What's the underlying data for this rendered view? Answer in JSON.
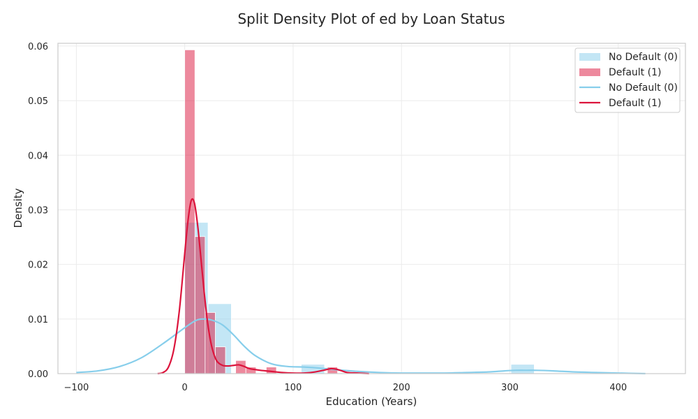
{
  "chart_data": {
    "type": "histogram+kde",
    "title": "Split Density Plot of ed by Loan Status",
    "xlabel": "Education (Years)",
    "ylabel": "Density",
    "xlim": [
      -117,
      462
    ],
    "ylim": [
      0,
      0.0605
    ],
    "xticks": [
      -100,
      0,
      100,
      200,
      300,
      400
    ],
    "yticks": [
      0.0,
      0.01,
      0.02,
      0.03,
      0.04,
      0.05,
      0.06
    ],
    "xtick_labels": [
      "−100",
      "0",
      "100",
      "200",
      "300",
      "400"
    ],
    "ytick_labels": [
      "0.00",
      "0.01",
      "0.02",
      "0.03",
      "0.04",
      "0.05",
      "0.06"
    ],
    "grid": true,
    "legend_position": "top-right",
    "legend": [
      {
        "label": "No Default (0)",
        "kind": "patch",
        "color": "#87CEEB"
      },
      {
        "label": "Default (1)",
        "kind": "patch",
        "color": "#DC143C"
      },
      {
        "label": "No Default (0)",
        "kind": "line",
        "color": "#87CEEB"
      },
      {
        "label": "Default (1)",
        "kind": "line",
        "color": "#DC143C"
      }
    ],
    "histograms": [
      {
        "series": "No Default (0)",
        "color": "#87CEEB",
        "opacity": 0.5,
        "bins": [
          {
            "x0": 0.0,
            "x1": 21.5,
            "density": 0.0277
          },
          {
            "x0": 21.5,
            "x1": 43.0,
            "density": 0.0128
          },
          {
            "x0": 107.5,
            "x1": 129.0,
            "density": 0.0017
          },
          {
            "x0": 301.0,
            "x1": 322.5,
            "density": 0.0017
          }
        ]
      },
      {
        "series": "Default (1)",
        "color": "#DC143C",
        "opacity": 0.5,
        "bins": [
          {
            "x0": 0.0,
            "x1": 9.4,
            "density": 0.0593
          },
          {
            "x0": 9.4,
            "x1": 18.8,
            "density": 0.0251
          },
          {
            "x0": 18.8,
            "x1": 28.2,
            "density": 0.0112
          },
          {
            "x0": 28.2,
            "x1": 37.6,
            "density": 0.0049
          },
          {
            "x0": 47.0,
            "x1": 56.4,
            "density": 0.0024
          },
          {
            "x0": 56.4,
            "x1": 65.8,
            "density": 0.0012
          },
          {
            "x0": 75.2,
            "x1": 84.6,
            "density": 0.0012
          },
          {
            "x0": 131.6,
            "x1": 141.0,
            "density": 0.0012
          }
        ]
      }
    ],
    "kde": [
      {
        "series": "No Default (0)",
        "color": "#87CEEB",
        "x": [
          -100,
          -80,
          -60,
          -40,
          -20,
          0,
          10,
          17,
          25,
          35,
          45,
          55,
          65,
          80,
          95,
          110,
          125,
          140,
          160,
          180,
          200,
          220,
          240,
          260,
          280,
          295,
          305,
          315,
          325,
          340,
          360,
          380,
          400,
          425
        ],
        "y": [
          0.0002,
          0.0005,
          0.0013,
          0.0029,
          0.0055,
          0.0084,
          0.0097,
          0.01,
          0.0098,
          0.0089,
          0.0071,
          0.005,
          0.0033,
          0.0018,
          0.0013,
          0.0012,
          0.001,
          0.0007,
          0.0004,
          0.0002,
          0.0001,
          0.0001,
          0.0001,
          0.0002,
          0.0003,
          0.0005,
          0.0006,
          0.0006,
          0.0006,
          0.0005,
          0.0003,
          0.0002,
          0.0001,
          0.0
        ]
      },
      {
        "series": "Default (1)",
        "color": "#DC143C",
        "x": [
          -25,
          -20,
          -15,
          -10,
          -5,
          0,
          3,
          6,
          9,
          12,
          15,
          18,
          21,
          24,
          27,
          30,
          35,
          40,
          45,
          50,
          55,
          60,
          70,
          80,
          90,
          100,
          110,
          120,
          130,
          135,
          140,
          145,
          150,
          160,
          170
        ],
        "y": [
          0.0,
          0.0002,
          0.0012,
          0.0045,
          0.0115,
          0.022,
          0.028,
          0.0317,
          0.0312,
          0.027,
          0.021,
          0.0148,
          0.0095,
          0.0058,
          0.0035,
          0.0022,
          0.0015,
          0.0014,
          0.0015,
          0.0016,
          0.0013,
          0.0009,
          0.0006,
          0.0004,
          0.0002,
          0.0001,
          0.0001,
          0.0003,
          0.0007,
          0.0009,
          0.0008,
          0.0005,
          0.0002,
          0.0001,
          0.0
        ]
      }
    ]
  }
}
